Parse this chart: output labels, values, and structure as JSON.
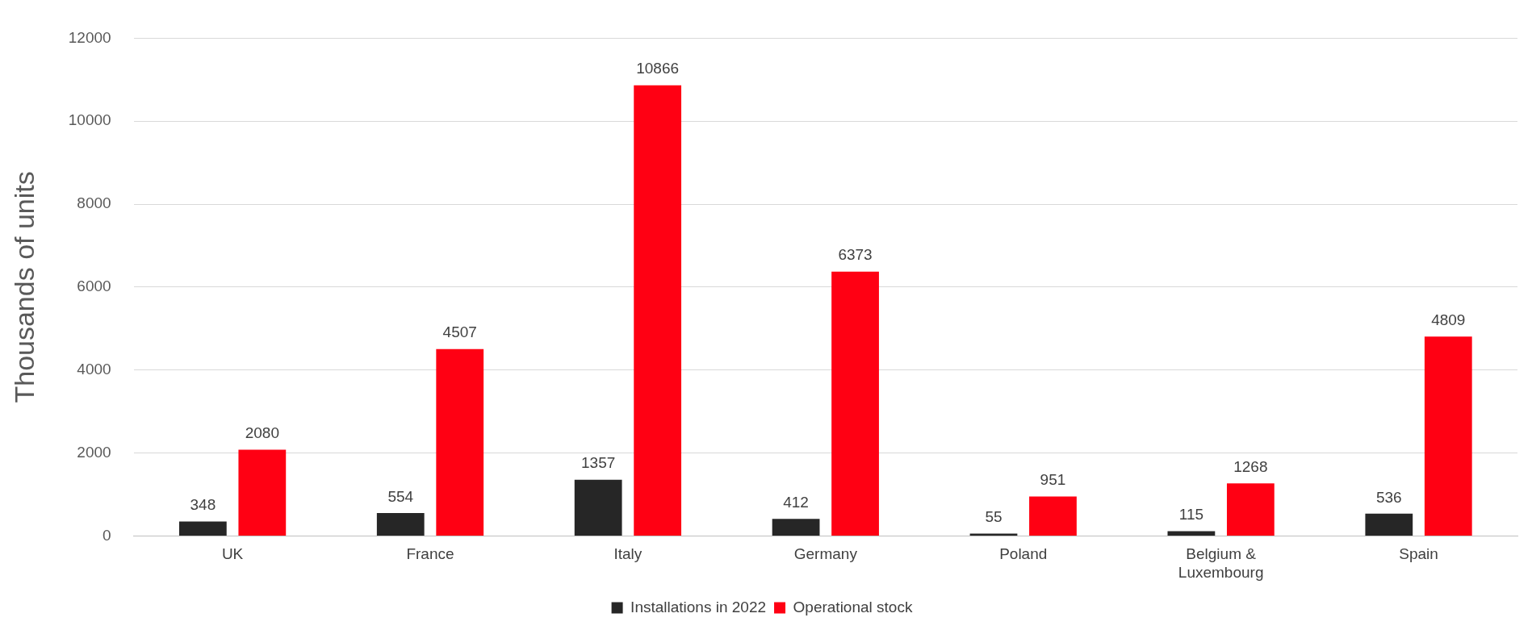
{
  "chart_data": {
    "type": "bar",
    "ylabel": "Thousands of units",
    "categories": [
      "UK",
      "France",
      "Italy",
      "Germany",
      "Poland",
      "Belgium & Luxembourg",
      "Spain"
    ],
    "series": [
      {
        "name": "Installations in 2022",
        "color": "#262626",
        "values": [
          348,
          554,
          1357,
          412,
          55,
          115,
          536
        ]
      },
      {
        "name": "Operational stock",
        "color": "#ff0013",
        "values": [
          2080,
          4507,
          10866,
          6373,
          951,
          1268,
          4809
        ]
      }
    ],
    "ylim": [
      0,
      12000
    ],
    "yticks": [
      0,
      2000,
      4000,
      6000,
      8000,
      10000,
      12000
    ],
    "grid": "y",
    "legend": "bottom",
    "data_labels": true
  }
}
